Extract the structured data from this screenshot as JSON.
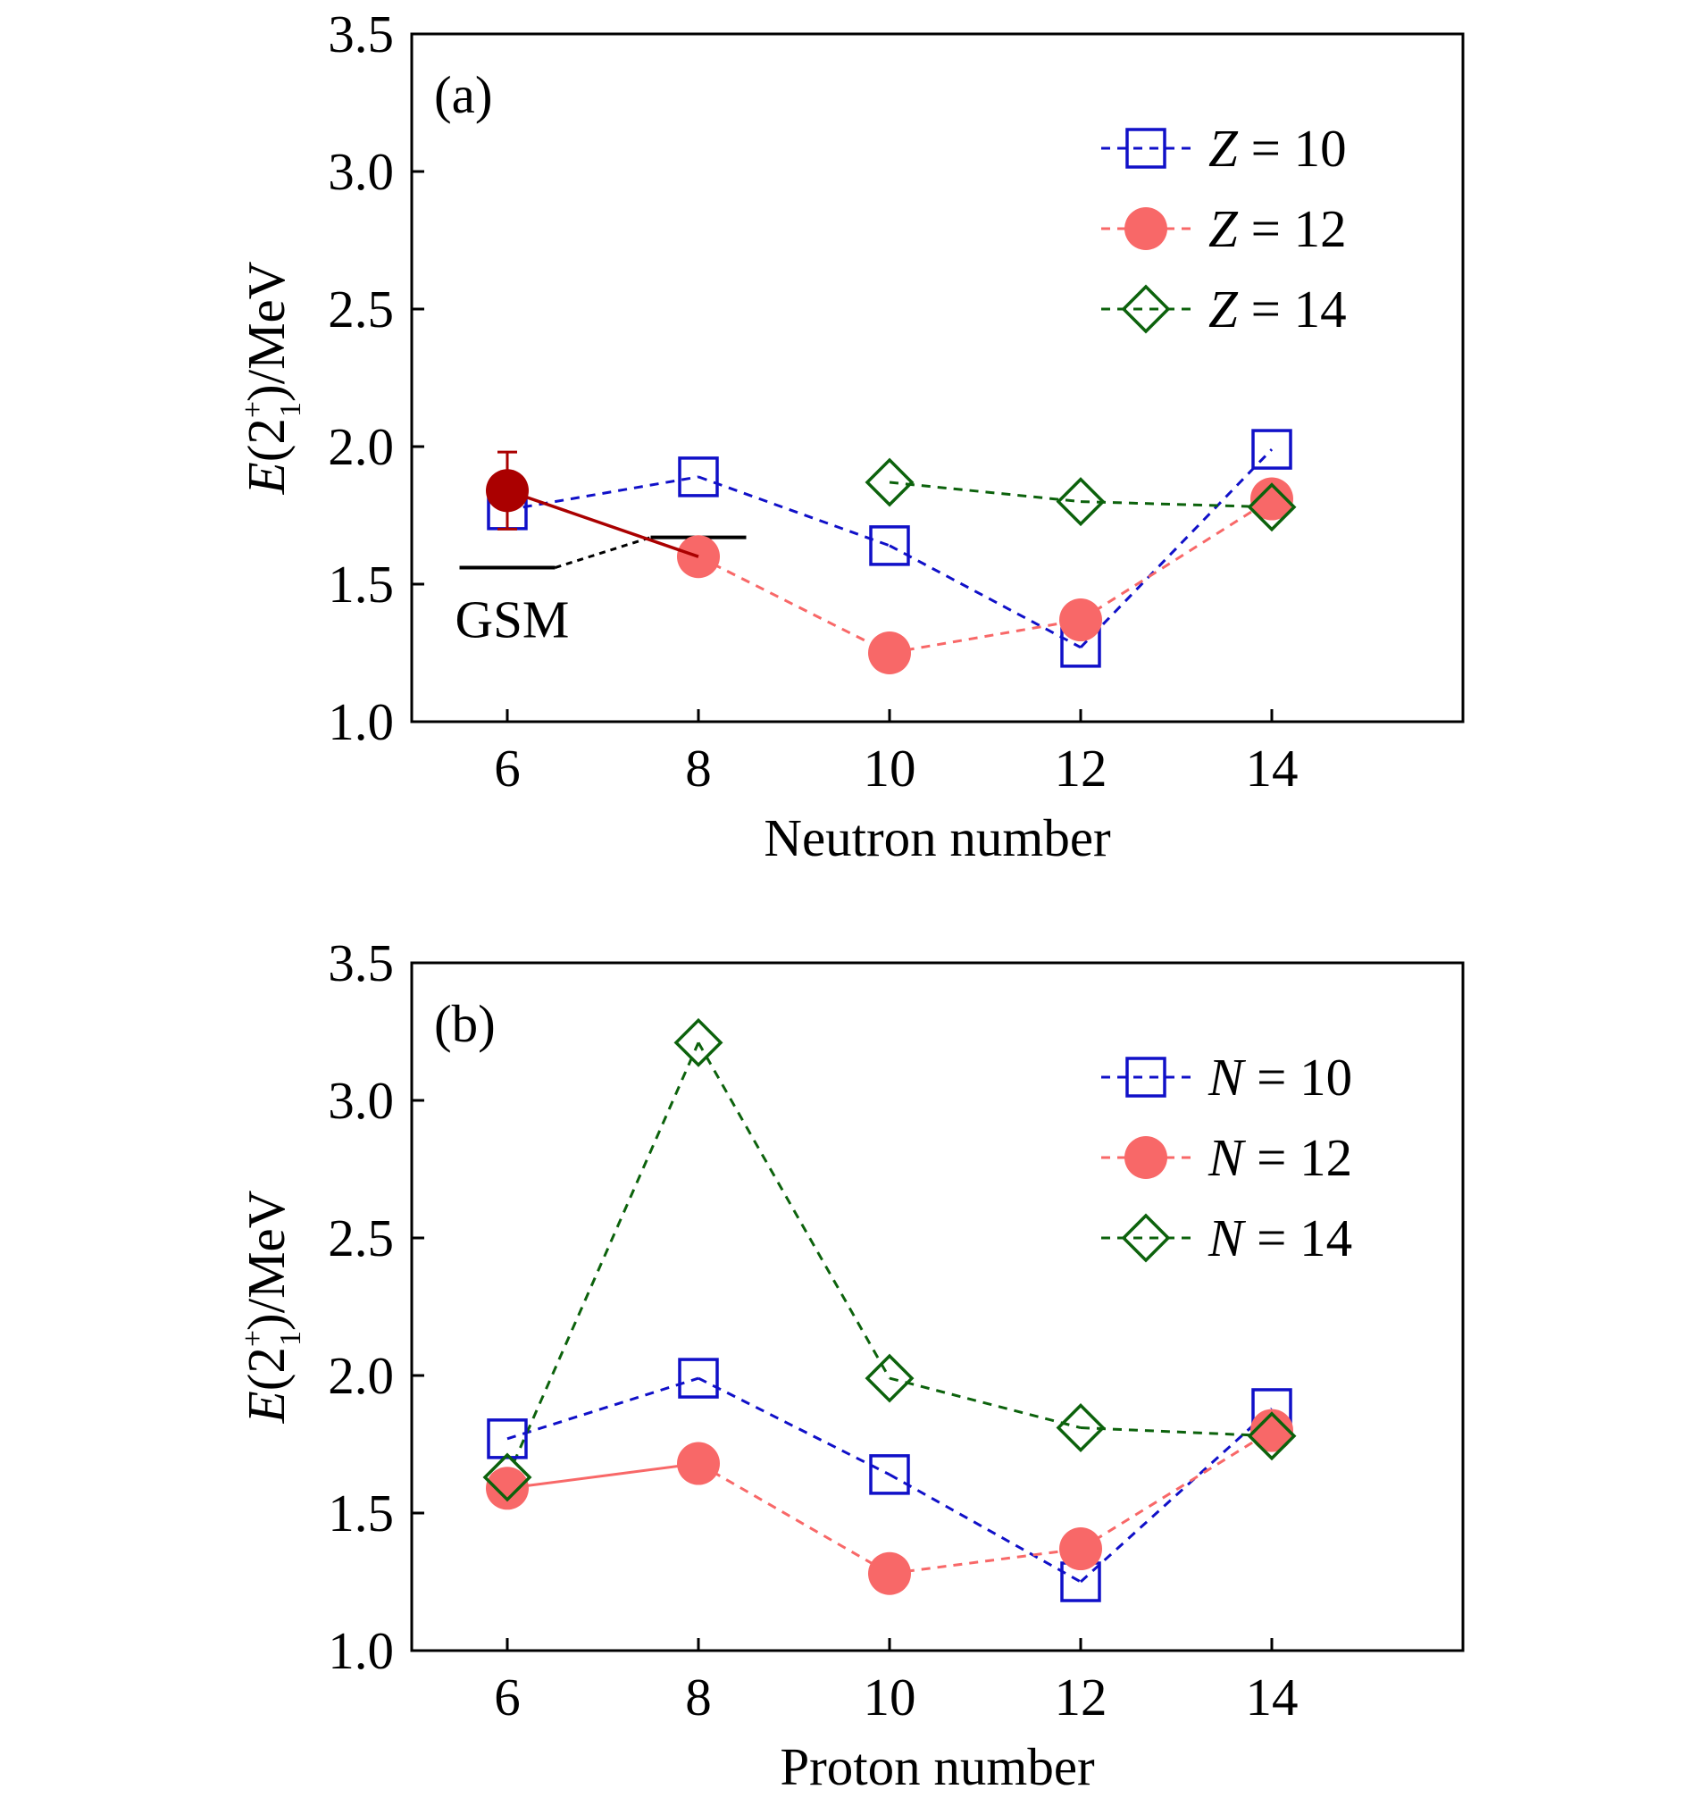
{
  "chart_data": [
    {
      "type": "line",
      "panel_label": "(a)",
      "xlabel": "Neutron number",
      "ylabel_main": "E",
      "ylabel_paren_open": "(2",
      "ylabel_sup": "+",
      "ylabel_sub": "1",
      "ylabel_rest": ")/MeV",
      "xlim": [
        5,
        16
      ],
      "ylim": [
        1.0,
        3.5
      ],
      "xticks": [
        6,
        8,
        10,
        12,
        14
      ],
      "xtick_labels": [
        "6",
        "8",
        "10",
        "12",
        "14"
      ],
      "yticks": [
        1.0,
        1.5,
        2.0,
        2.5,
        3.0,
        3.5
      ],
      "ytick_labels": [
        "1.0",
        "1.5",
        "2.0",
        "2.5",
        "3.0",
        "3.5"
      ],
      "legend_position": "top-right",
      "series": [
        {
          "name_var": "Z",
          "name_rest": " = 10",
          "marker": "square",
          "color": "#1010c8",
          "x": [
            6,
            8,
            10,
            12,
            14
          ],
          "y": [
            1.77,
            1.89,
            1.64,
            1.27,
            1.99
          ]
        },
        {
          "name_var": "Z",
          "name_rest": " = 12",
          "marker": "circle",
          "color": "#f86868",
          "x": [
            8,
            10,
            12,
            14
          ],
          "y": [
            1.6,
            1.25,
            1.37,
            1.81
          ]
        },
        {
          "name_var": "Z",
          "name_rest": " = 14",
          "marker": "diamond",
          "color": "#0c620c",
          "x": [
            10,
            12,
            14
          ],
          "y": [
            1.87,
            1.8,
            1.78
          ]
        }
      ],
      "experimental_point": {
        "x": 6,
        "y": 1.84,
        "error": 0.14,
        "color": "#aa0000",
        "line_to": {
          "x": 8,
          "y": 1.6
        }
      },
      "gsm_annotation": {
        "label": "GSM",
        "color": "#000000",
        "levels": [
          {
            "x_start": 5.5,
            "x_end": 6.5,
            "y": 1.56
          },
          {
            "x_start": 7.5,
            "x_end": 8.5,
            "y": 1.67
          }
        ]
      }
    },
    {
      "type": "line",
      "panel_label": "(b)",
      "xlabel": "Proton number",
      "ylabel_main": "E",
      "ylabel_paren_open": "(2",
      "ylabel_sup": "+",
      "ylabel_sub": "1",
      "ylabel_rest": ")/MeV",
      "xlim": [
        5,
        16
      ],
      "ylim": [
        1.0,
        3.5
      ],
      "xticks": [
        6,
        8,
        10,
        12,
        14
      ],
      "xtick_labels": [
        "6",
        "8",
        "10",
        "12",
        "14"
      ],
      "yticks": [
        1.0,
        1.5,
        2.0,
        2.5,
        3.0,
        3.5
      ],
      "ytick_labels": [
        "1.0",
        "1.5",
        "2.0",
        "2.5",
        "3.0",
        "3.5"
      ],
      "legend_position": "top-right",
      "series": [
        {
          "name_var": "N",
          "name_rest": " = 10",
          "marker": "square",
          "color": "#1010c8",
          "x": [
            6,
            8,
            10,
            12,
            14
          ],
          "y": [
            1.77,
            1.99,
            1.64,
            1.25,
            1.88
          ]
        },
        {
          "name_var": "N",
          "name_rest": " = 12",
          "marker": "circle",
          "color": "#f86868",
          "x": [
            6,
            8,
            10,
            12,
            14
          ],
          "y": [
            1.59,
            1.68,
            1.28,
            1.37,
            1.8
          ],
          "solid_first_segment": true
        },
        {
          "name_var": "N",
          "name_rest": " = 14",
          "marker": "diamond",
          "color": "#0c620c",
          "x": [
            6,
            8,
            10,
            12,
            14
          ],
          "y": [
            1.63,
            3.21,
            1.99,
            1.81,
            1.78
          ]
        }
      ]
    }
  ]
}
